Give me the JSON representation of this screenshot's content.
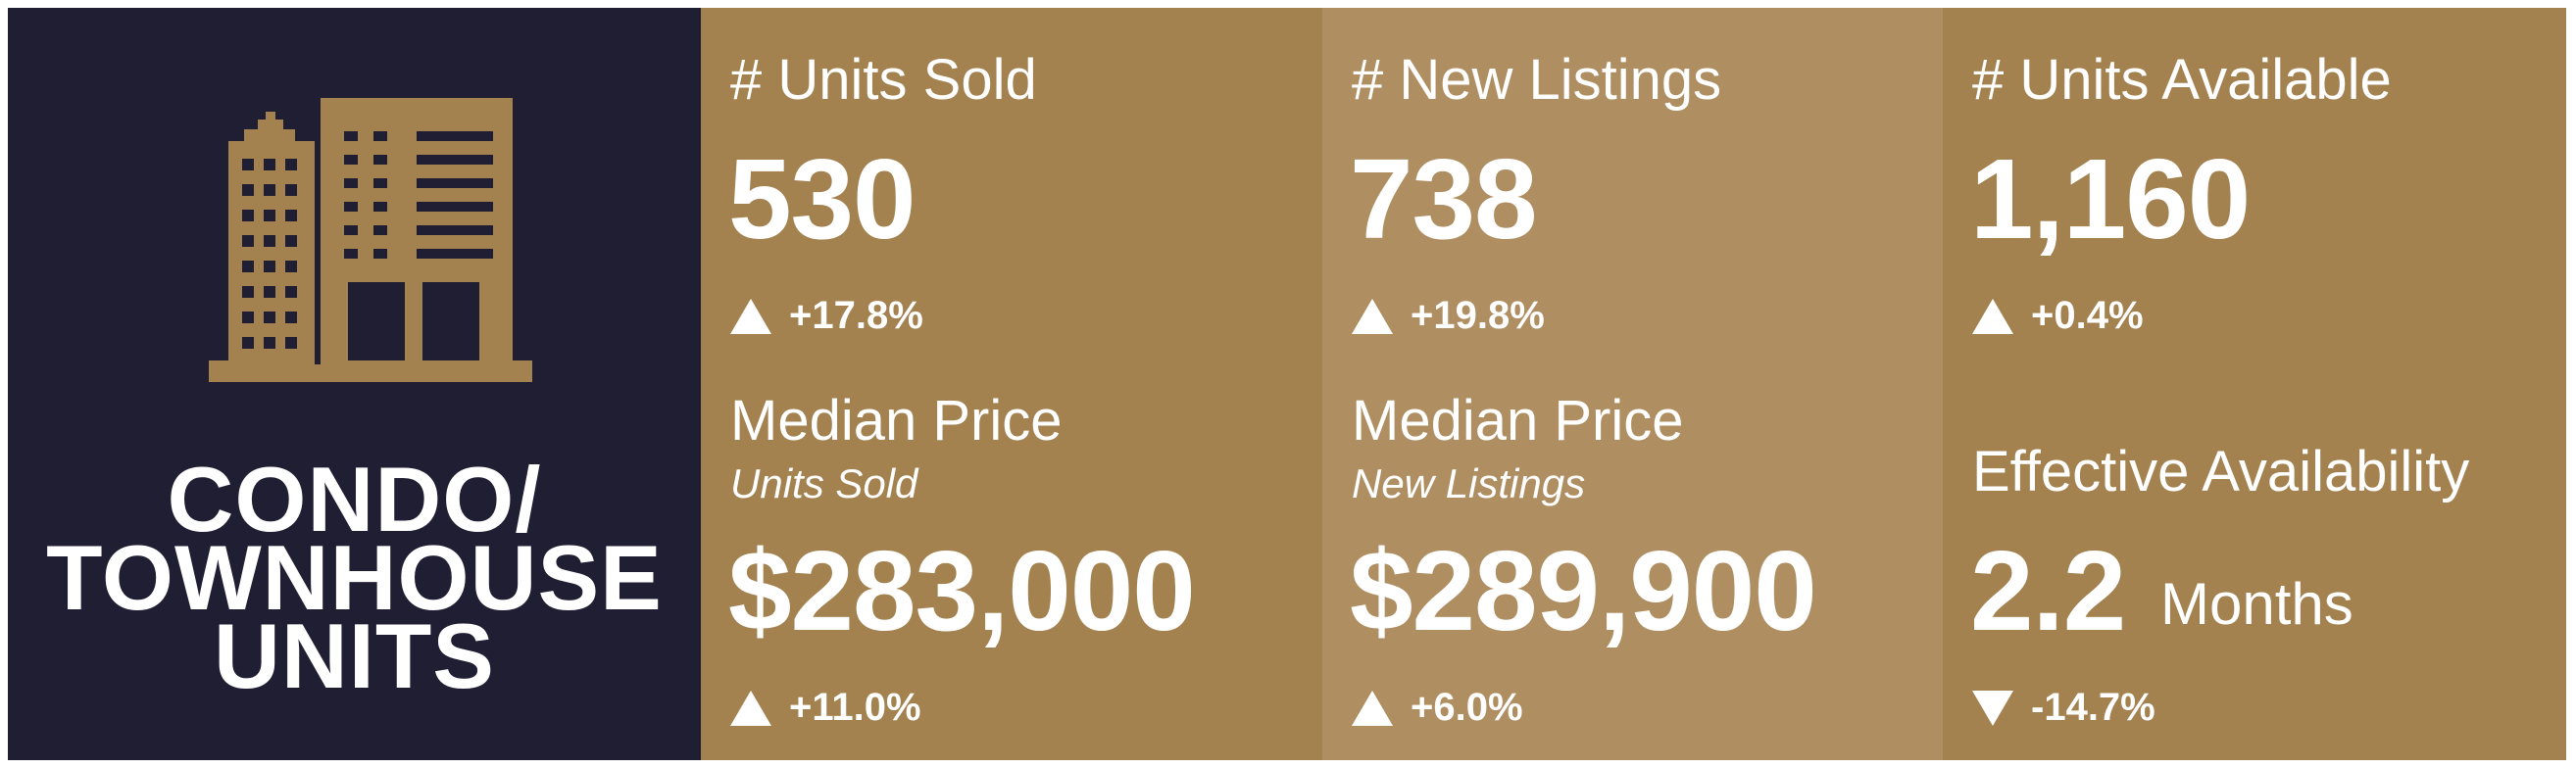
{
  "category": {
    "line1": "CONDO/",
    "line2": "TOWNHOUSE",
    "line3": "UNITS",
    "icon": "building-icon"
  },
  "colors": {
    "navy": "#201e33",
    "gold": "#a38250",
    "gold_light": "#af8f62",
    "text": "#ffffff"
  },
  "units_sold": {
    "label": "# Units Sold",
    "value": "530",
    "change": "+17.8%",
    "direction": "up"
  },
  "median_sold": {
    "label": "Median Price",
    "sublabel": "Units Sold",
    "value": "$283,000",
    "change": "+11.0%",
    "direction": "up"
  },
  "new_listings": {
    "label": "# New Listings",
    "value": "738",
    "change": "+19.8%",
    "direction": "up"
  },
  "median_new": {
    "label": "Median Price",
    "sublabel": "New Listings",
    "value": "$289,900",
    "change": "+6.0%",
    "direction": "up"
  },
  "units_available": {
    "label": "# Units Available",
    "value": "1,160",
    "change": "+0.4%",
    "direction": "up"
  },
  "effective_availability": {
    "label": "Effective Availability",
    "value": "2.2",
    "unit": "Months",
    "change": "-14.7%",
    "direction": "down"
  }
}
